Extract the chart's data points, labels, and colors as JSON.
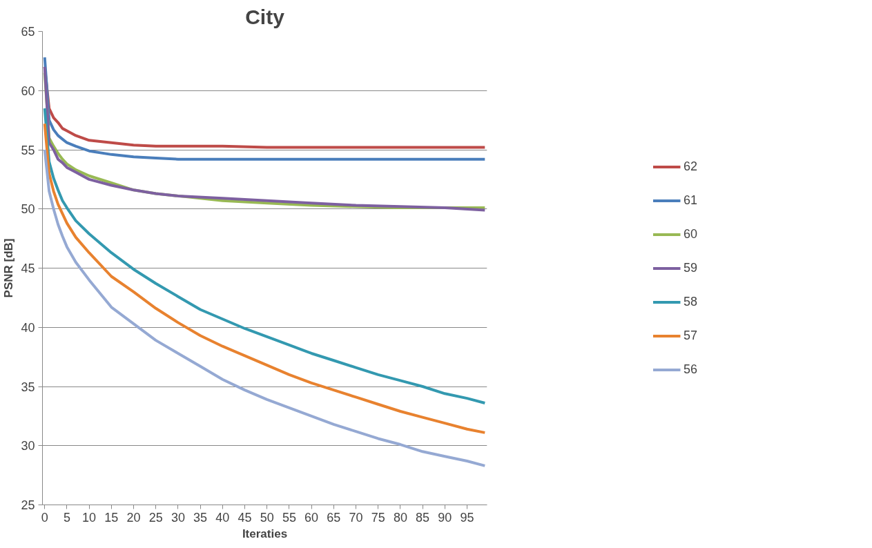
{
  "chart_data": {
    "type": "line",
    "title": "City",
    "xlabel": "Iteraties",
    "ylabel": "PSNR [dB]",
    "xlim": [
      -0.5,
      99.5
    ],
    "ylim": [
      25,
      65
    ],
    "xticks": [
      0,
      5,
      10,
      15,
      20,
      25,
      30,
      35,
      40,
      45,
      50,
      55,
      60,
      65,
      70,
      75,
      80,
      85,
      90,
      95
    ],
    "yticks": [
      25,
      30,
      35,
      40,
      45,
      50,
      55,
      60,
      65
    ],
    "grid": "y",
    "legend": "right",
    "marker": "none",
    "line_style": "solid",
    "series": [
      {
        "name": "62",
        "color": "#be4b48",
        "x": [
          0,
          1,
          2,
          3,
          4,
          5,
          7,
          10,
          15,
          20,
          25,
          30,
          40,
          50,
          99
        ],
        "values": [
          62.0,
          58.5,
          57.7,
          57.3,
          56.8,
          56.6,
          56.2,
          55.8,
          55.6,
          55.4,
          55.3,
          55.3,
          55.3,
          55.2,
          55.2
        ]
      },
      {
        "name": "61",
        "color": "#4a7ebb",
        "x": [
          0,
          1,
          2,
          3,
          4,
          5,
          7,
          10,
          15,
          20,
          25,
          30,
          99
        ],
        "values": [
          62.8,
          57.5,
          56.7,
          56.2,
          55.9,
          55.6,
          55.3,
          54.9,
          54.6,
          54.4,
          54.3,
          54.2,
          54.2
        ]
      },
      {
        "name": "60",
        "color": "#98b954",
        "x": [
          0,
          1,
          2,
          3,
          4,
          5,
          7,
          10,
          15,
          20,
          25,
          30,
          40,
          50,
          60,
          70,
          80,
          99
        ],
        "values": [
          61.5,
          56.0,
          55.3,
          54.7,
          54.2,
          53.8,
          53.3,
          52.8,
          52.2,
          51.6,
          51.3,
          51.1,
          50.7,
          50.5,
          50.3,
          50.2,
          50.1,
          50.1
        ]
      },
      {
        "name": "59",
        "color": "#7d60a0",
        "x": [
          0,
          1,
          2,
          3,
          4,
          5,
          7,
          10,
          15,
          20,
          25,
          30,
          40,
          50,
          60,
          70,
          80,
          90,
          99
        ],
        "values": [
          62.0,
          55.6,
          55.0,
          54.2,
          53.9,
          53.5,
          53.1,
          52.5,
          52.0,
          51.6,
          51.3,
          51.1,
          50.9,
          50.7,
          50.5,
          50.3,
          50.2,
          50.1,
          49.9
        ]
      },
      {
        "name": "58",
        "color": "#3399b0",
        "x": [
          0,
          1,
          2,
          3,
          4,
          5,
          7,
          10,
          15,
          20,
          25,
          30,
          35,
          40,
          45,
          50,
          55,
          60,
          65,
          70,
          75,
          80,
          85,
          90,
          95,
          99
        ],
        "values": [
          58.5,
          54.0,
          52.6,
          51.6,
          50.7,
          50.1,
          49.0,
          47.9,
          46.3,
          44.9,
          43.7,
          42.6,
          41.5,
          40.7,
          39.9,
          39.2,
          38.5,
          37.8,
          37.2,
          36.6,
          36.0,
          35.5,
          35.0,
          34.4,
          34.0,
          33.6
        ]
      },
      {
        "name": "57",
        "color": "#e8822f",
        "x": [
          0,
          1,
          2,
          3,
          4,
          5,
          7,
          10,
          15,
          20,
          25,
          30,
          35,
          40,
          45,
          50,
          55,
          60,
          65,
          70,
          75,
          80,
          85,
          90,
          95,
          99
        ],
        "values": [
          57.2,
          53.0,
          51.5,
          50.4,
          49.6,
          48.8,
          47.6,
          46.3,
          44.3,
          43.0,
          41.6,
          40.4,
          39.3,
          38.4,
          37.6,
          36.8,
          36.0,
          35.3,
          34.7,
          34.1,
          33.5,
          32.9,
          32.4,
          31.9,
          31.4,
          31.1
        ]
      },
      {
        "name": "56",
        "color": "#95a9d3",
        "x": [
          0,
          1,
          2,
          3,
          4,
          5,
          7,
          10,
          15,
          20,
          25,
          30,
          35,
          40,
          45,
          50,
          55,
          60,
          65,
          70,
          75,
          80,
          85,
          90,
          95,
          99
        ],
        "values": [
          55.0,
          51.5,
          50.0,
          48.7,
          47.7,
          46.8,
          45.5,
          44.0,
          41.7,
          40.3,
          38.9,
          37.8,
          36.7,
          35.6,
          34.7,
          33.9,
          33.2,
          32.5,
          31.8,
          31.2,
          30.6,
          30.1,
          29.5,
          29.1,
          28.7,
          28.3
        ]
      }
    ]
  }
}
